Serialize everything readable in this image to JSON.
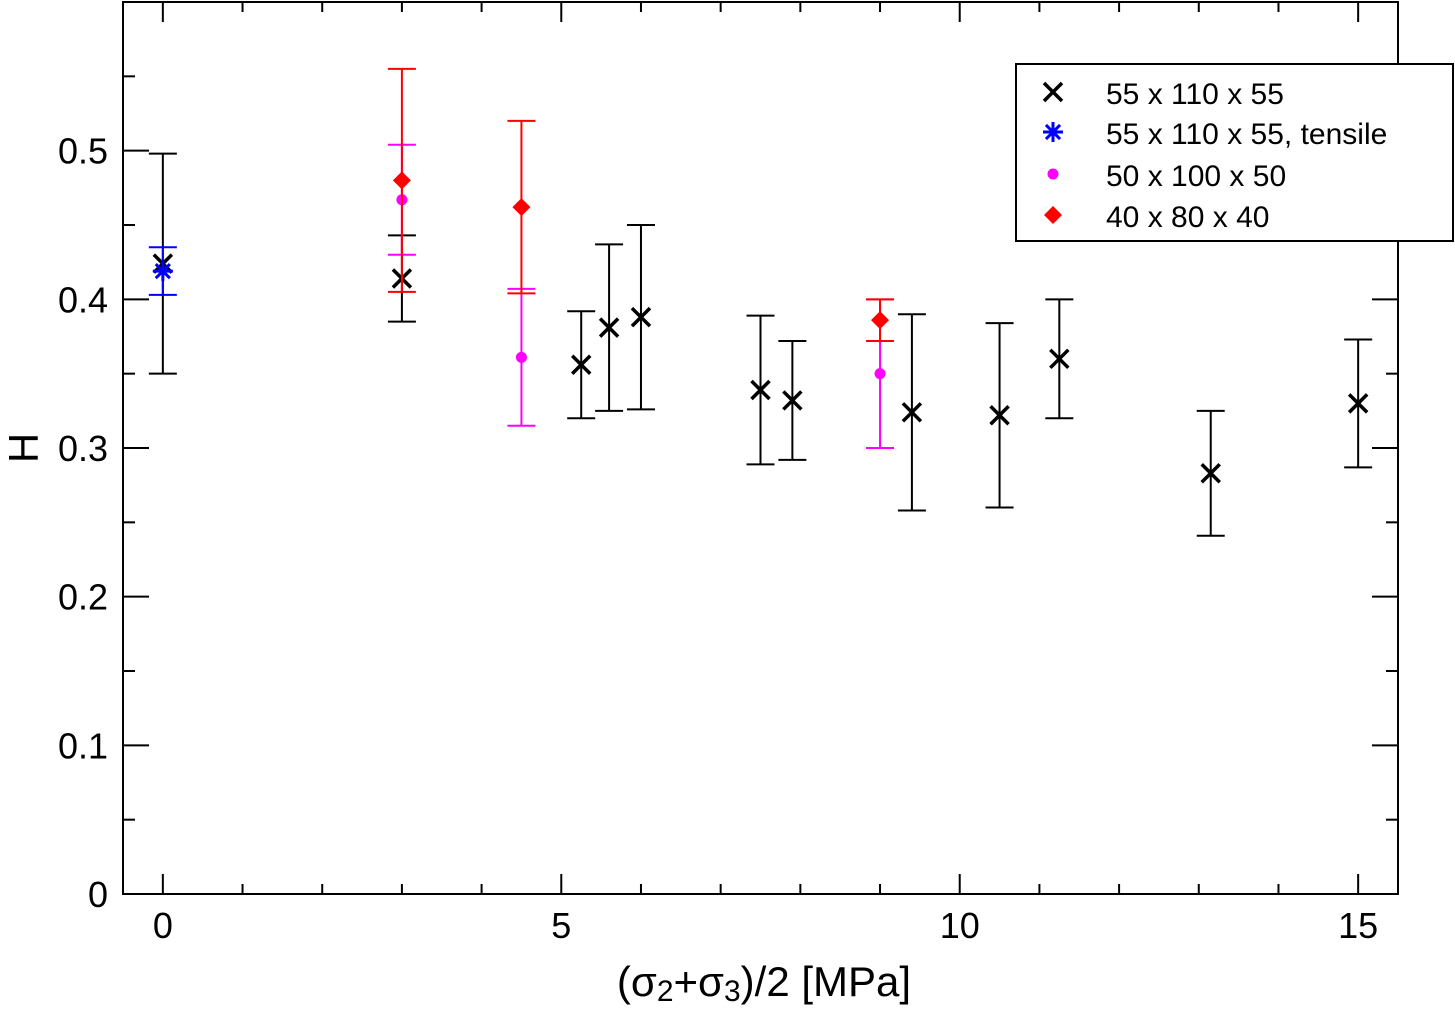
{
  "chart_data": {
    "type": "scatter",
    "title": "",
    "xlabel": "(σ2+σ3)/2   [MPa]",
    "xlabel_parts": {
      "open": "(σ",
      "sub1": "2",
      "plus": "+σ",
      "sub2": "3",
      "close": ")/2   [MPa]"
    },
    "ylabel": "H",
    "xlim": [
      -0.5,
      15.5
    ],
    "ylim": [
      0,
      0.6
    ],
    "xticks": [
      0,
      5,
      10,
      15
    ],
    "xtick_labels": [
      "0",
      "5",
      "10",
      "15"
    ],
    "yticks": [
      0,
      0.1,
      0.2,
      0.3,
      0.4,
      0.5
    ],
    "ytick_labels": [
      "0",
      "0.1",
      "0.2",
      "0.3",
      "0.4",
      "0.5"
    ],
    "grid": false,
    "legend_position": "top-right",
    "series": [
      {
        "name": "55 x 110 x 55",
        "marker": "x",
        "color": "#000000",
        "points": [
          {
            "x": 0.0,
            "y": 0.424,
            "err": 0.074
          },
          {
            "x": 3.0,
            "y": 0.414,
            "err": 0.029
          },
          {
            "x": 5.25,
            "y": 0.356,
            "err": 0.036
          },
          {
            "x": 5.6,
            "y": 0.381,
            "err": 0.056
          },
          {
            "x": 6.0,
            "y": 0.388,
            "err": 0.062
          },
          {
            "x": 7.5,
            "y": 0.339,
            "err": 0.05
          },
          {
            "x": 7.9,
            "y": 0.332,
            "err": 0.04
          },
          {
            "x": 9.4,
            "y": 0.324,
            "err": 0.066
          },
          {
            "x": 10.5,
            "y": 0.322,
            "err": 0.062
          },
          {
            "x": 11.25,
            "y": 0.36,
            "err": 0.04
          },
          {
            "x": 13.15,
            "y": 0.283,
            "err": 0.042
          },
          {
            "x": 15.0,
            "y": 0.33,
            "err": 0.043
          }
        ]
      },
      {
        "name": "55 x 110 x 55, tensile",
        "marker": "asterisk",
        "color": "#0000ff",
        "points": [
          {
            "x": 0.0,
            "y": 0.419,
            "err": 0.016
          }
        ]
      },
      {
        "name": "50 x 100 x 50",
        "marker": "dot",
        "color": "#ff00ff",
        "points": [
          {
            "x": 3.0,
            "y": 0.467,
            "err": 0.037
          },
          {
            "x": 4.5,
            "y": 0.361,
            "err": 0.046
          },
          {
            "x": 9.0,
            "y": 0.35,
            "err": 0.05
          }
        ]
      },
      {
        "name": "40 x 80 x 40",
        "marker": "diamond",
        "color": "#ff0000",
        "points": [
          {
            "x": 3.0,
            "y": 0.48,
            "err": 0.075
          },
          {
            "x": 4.5,
            "y": 0.462,
            "err": 0.058
          },
          {
            "x": 9.0,
            "y": 0.386,
            "err": 0.014
          }
        ]
      }
    ]
  }
}
